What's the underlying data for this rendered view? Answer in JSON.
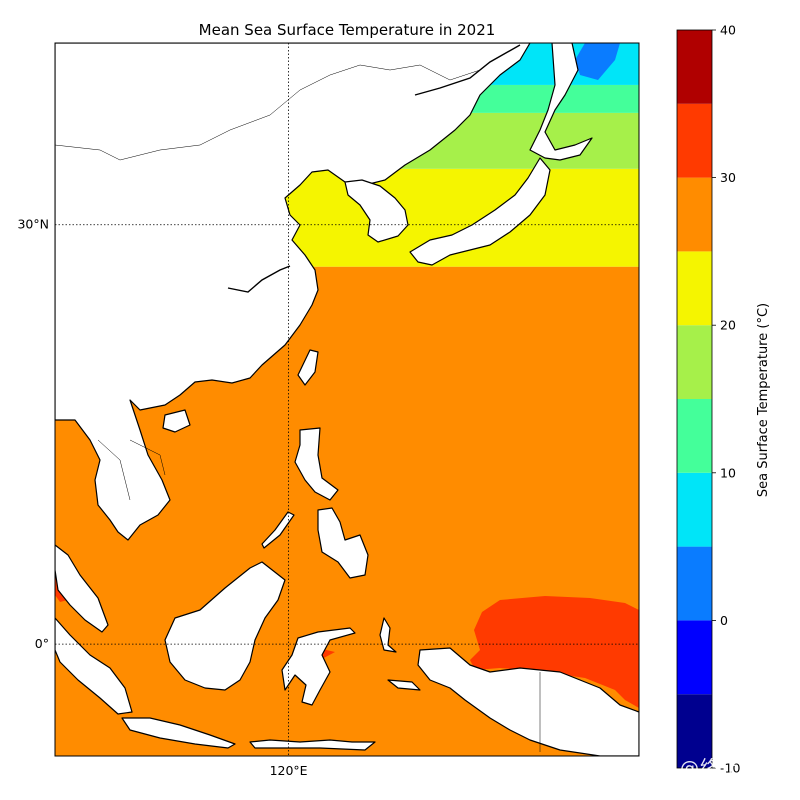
{
  "title": "Mean Sea Surface Temperature in 2021",
  "map": {
    "lon_range": [
      100,
      150
    ],
    "lat_range": [
      -8,
      43
    ],
    "lon_labels": [
      {
        "lon": 120,
        "label": "120°E"
      }
    ],
    "lat_labels": [
      {
        "lat": 30,
        "label": "30°N"
      },
      {
        "lat": 0,
        "label": "0°"
      }
    ],
    "gridlines": "dotted",
    "ocean_bands": [
      {
        "lat_min": -8,
        "lat_max": 27,
        "range": "25-30",
        "color": "#ff8c00"
      },
      {
        "lat_min": 27,
        "lat_max": 34,
        "range": "20-25",
        "color": "#f5f500"
      },
      {
        "lat_min": 34,
        "lat_max": 38,
        "range": "15-20",
        "color": "#a6f04a"
      },
      {
        "lat_min": 38,
        "lat_max": 40,
        "range": "10-15",
        "color": "#44ff9a"
      },
      {
        "lat_min": 40,
        "lat_max": 43,
        "range": "5-10",
        "color": "#00e5f8"
      }
    ],
    "warm_pool": {
      "range": "30-35",
      "color": "#ff3a00",
      "lon": [
        135,
        148
      ],
      "lat": [
        -4,
        3
      ]
    },
    "cold_patch": {
      "range": "0-5",
      "color": "#0a7cff",
      "lon": [
        144,
        148
      ],
      "lat": [
        41,
        43
      ]
    }
  },
  "colorbar": {
    "label": "Sea Surface Temperature (°C)",
    "ticks": [
      -10,
      0,
      10,
      20,
      30,
      40
    ],
    "range": [
      -10,
      40
    ],
    "levels": [
      {
        "from": -10,
        "to": -5,
        "color": "#00008f"
      },
      {
        "from": -5,
        "to": 0,
        "color": "#0000ff"
      },
      {
        "from": 0,
        "to": 5,
        "color": "#0a7cff"
      },
      {
        "from": 5,
        "to": 10,
        "color": "#00e5f8"
      },
      {
        "from": 10,
        "to": 15,
        "color": "#44ff9a"
      },
      {
        "from": 15,
        "to": 20,
        "color": "#a6f04a"
      },
      {
        "from": 20,
        "to": 25,
        "color": "#f5f500"
      },
      {
        "from": 25,
        "to": 30,
        "color": "#ff8c00"
      },
      {
        "from": 30,
        "to": 35,
        "color": "#ff3a00"
      },
      {
        "from": 35,
        "to": 40,
        "color": "#b00000"
      }
    ]
  },
  "watermark": "知乎 @终止进程"
}
